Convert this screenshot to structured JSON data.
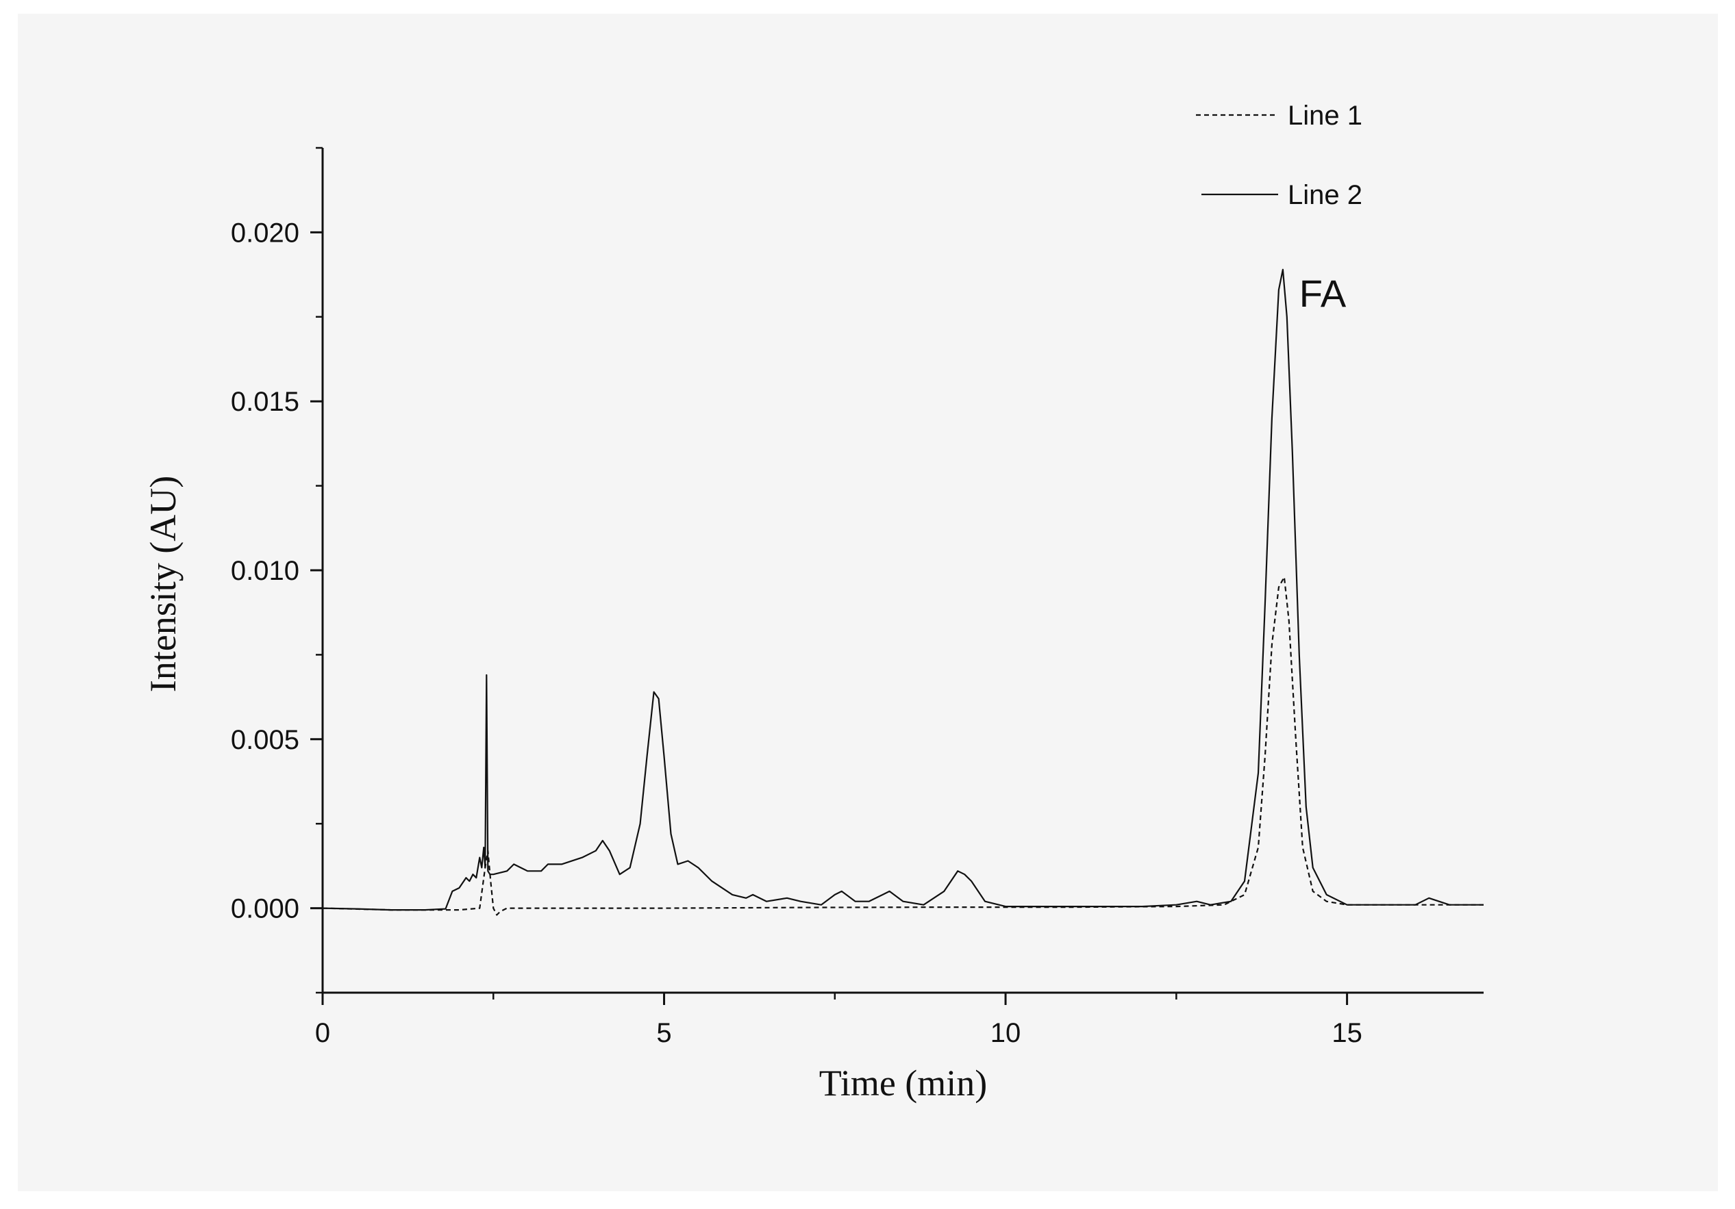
{
  "chart_data": {
    "type": "line",
    "title": "",
    "xlabel": "Time (min)",
    "ylabel": "Intensity (AU)",
    "xlim": [
      0,
      17
    ],
    "ylim": [
      -0.0025,
      0.0225
    ],
    "xticks": [
      0,
      5,
      10,
      15
    ],
    "xtick_labels": [
      "0",
      "5",
      "10",
      "15"
    ],
    "yticks": [
      0.0,
      0.005,
      0.01,
      0.015,
      0.02
    ],
    "ytick_labels": [
      "0.000",
      "0.005",
      "0.010",
      "0.015",
      "0.020"
    ],
    "grid": false,
    "legend_position": "top-right",
    "annotations": [
      {
        "text": "FA",
        "x": 14.3,
        "y": 0.0178
      }
    ],
    "series": [
      {
        "name": "Line 1",
        "style": "dashed",
        "color": "#111111",
        "x": [
          0,
          1.0,
          2.0,
          2.3,
          2.38,
          2.42,
          2.46,
          2.5,
          2.55,
          2.6,
          2.7,
          2.9,
          3.5,
          5.0,
          7.0,
          9.0,
          11.0,
          12.5,
          13.2,
          13.5,
          13.7,
          13.8,
          13.9,
          14.0,
          14.08,
          14.15,
          14.25,
          14.35,
          14.5,
          14.7,
          15.0,
          16.0,
          17.0
        ],
        "y": [
          0.0,
          -5e-05,
          -5e-05,
          0.0,
          0.0012,
          0.0017,
          0.0008,
          0.0,
          -0.0002,
          -0.0001,
          0.0,
          0.0,
          0.0,
          0.0,
          2e-05,
          3e-05,
          3e-05,
          5e-05,
          0.0001,
          0.0004,
          0.0018,
          0.0045,
          0.0078,
          0.0095,
          0.0098,
          0.0085,
          0.005,
          0.0018,
          0.0005,
          0.0002,
          0.0001,
          0.0001,
          0.0001
        ]
      },
      {
        "name": "Line 2",
        "style": "solid",
        "color": "#111111",
        "x": [
          0,
          0.5,
          1.0,
          1.5,
          1.8,
          1.9,
          2.0,
          2.1,
          2.15,
          2.2,
          2.25,
          2.3,
          2.33,
          2.36,
          2.38,
          2.4,
          2.42,
          2.45,
          2.5,
          2.7,
          2.8,
          3.0,
          3.2,
          3.3,
          3.5,
          3.8,
          4.0,
          4.1,
          4.2,
          4.35,
          4.5,
          4.65,
          4.75,
          4.85,
          4.92,
          5.0,
          5.1,
          5.2,
          5.35,
          5.5,
          5.7,
          6.0,
          6.2,
          6.3,
          6.5,
          6.8,
          7.0,
          7.3,
          7.5,
          7.6,
          7.8,
          8.0,
          8.2,
          8.3,
          8.5,
          8.8,
          9.1,
          9.3,
          9.4,
          9.5,
          9.7,
          10.0,
          11.0,
          12.0,
          12.5,
          12.8,
          13.0,
          13.3,
          13.5,
          13.7,
          13.8,
          13.9,
          14.0,
          14.06,
          14.12,
          14.2,
          14.3,
          14.4,
          14.5,
          14.7,
          15.0,
          15.5,
          16.0,
          16.2,
          16.5,
          17.0
        ],
        "y": [
          0.0,
          -2e-05,
          -5e-05,
          -5e-05,
          -2e-05,
          0.0005,
          0.0006,
          0.0009,
          0.0008,
          0.001,
          0.0009,
          0.0015,
          0.0012,
          0.0018,
          0.0012,
          0.0069,
          0.0011,
          0.001,
          0.001,
          0.0011,
          0.0013,
          0.0011,
          0.0011,
          0.0013,
          0.0013,
          0.0015,
          0.0017,
          0.002,
          0.0017,
          0.001,
          0.0012,
          0.0025,
          0.0045,
          0.0064,
          0.0062,
          0.0045,
          0.0022,
          0.0013,
          0.0014,
          0.0012,
          0.0008,
          0.0004,
          0.0003,
          0.0004,
          0.0002,
          0.0003,
          0.0002,
          0.0001,
          0.0004,
          0.0005,
          0.0002,
          0.0002,
          0.0004,
          0.0005,
          0.0002,
          0.0001,
          0.0005,
          0.0011,
          0.001,
          0.0008,
          0.0002,
          5e-05,
          5e-05,
          5e-05,
          0.0001,
          0.0002,
          0.0001,
          0.0002,
          0.0008,
          0.004,
          0.009,
          0.0145,
          0.0183,
          0.0189,
          0.0175,
          0.0135,
          0.0075,
          0.003,
          0.0012,
          0.0004,
          0.0001,
          0.0001,
          0.0001,
          0.0003,
          0.0001,
          0.0001
        ]
      }
    ]
  }
}
